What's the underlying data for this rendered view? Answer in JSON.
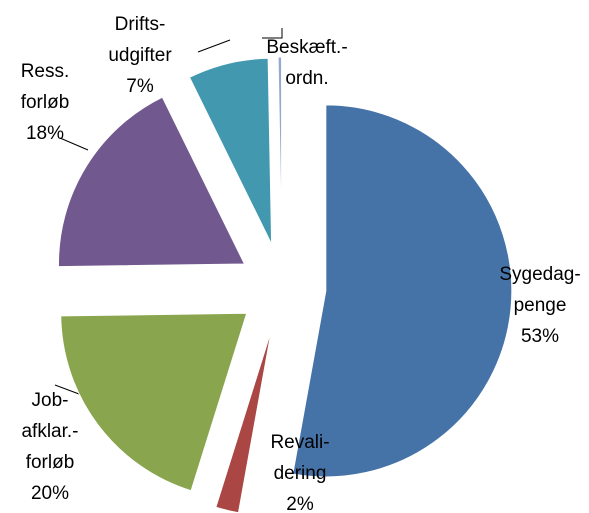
{
  "chart_data": {
    "type": "pie",
    "categories": [
      [
        "Sygedag-",
        "penge"
      ],
      [
        "Revali-",
        "dering"
      ],
      [
        "Job-",
        "afklar.-",
        "forløb"
      ],
      [
        "Ress.",
        "forløb"
      ],
      [
        "Drifts-",
        "udgifter"
      ],
      [
        "Beskæft.-",
        "ordn."
      ]
    ],
    "values": [
      53,
      2,
      20,
      18,
      7,
      0.3
    ],
    "value_labels": [
      "53%",
      "2%",
      "20%",
      "18%",
      "7%",
      null
    ],
    "colors": [
      "#4572a7",
      "#aa4643",
      "#89a54e",
      "#71588f",
      "#4198af",
      "#93a9cf"
    ]
  }
}
